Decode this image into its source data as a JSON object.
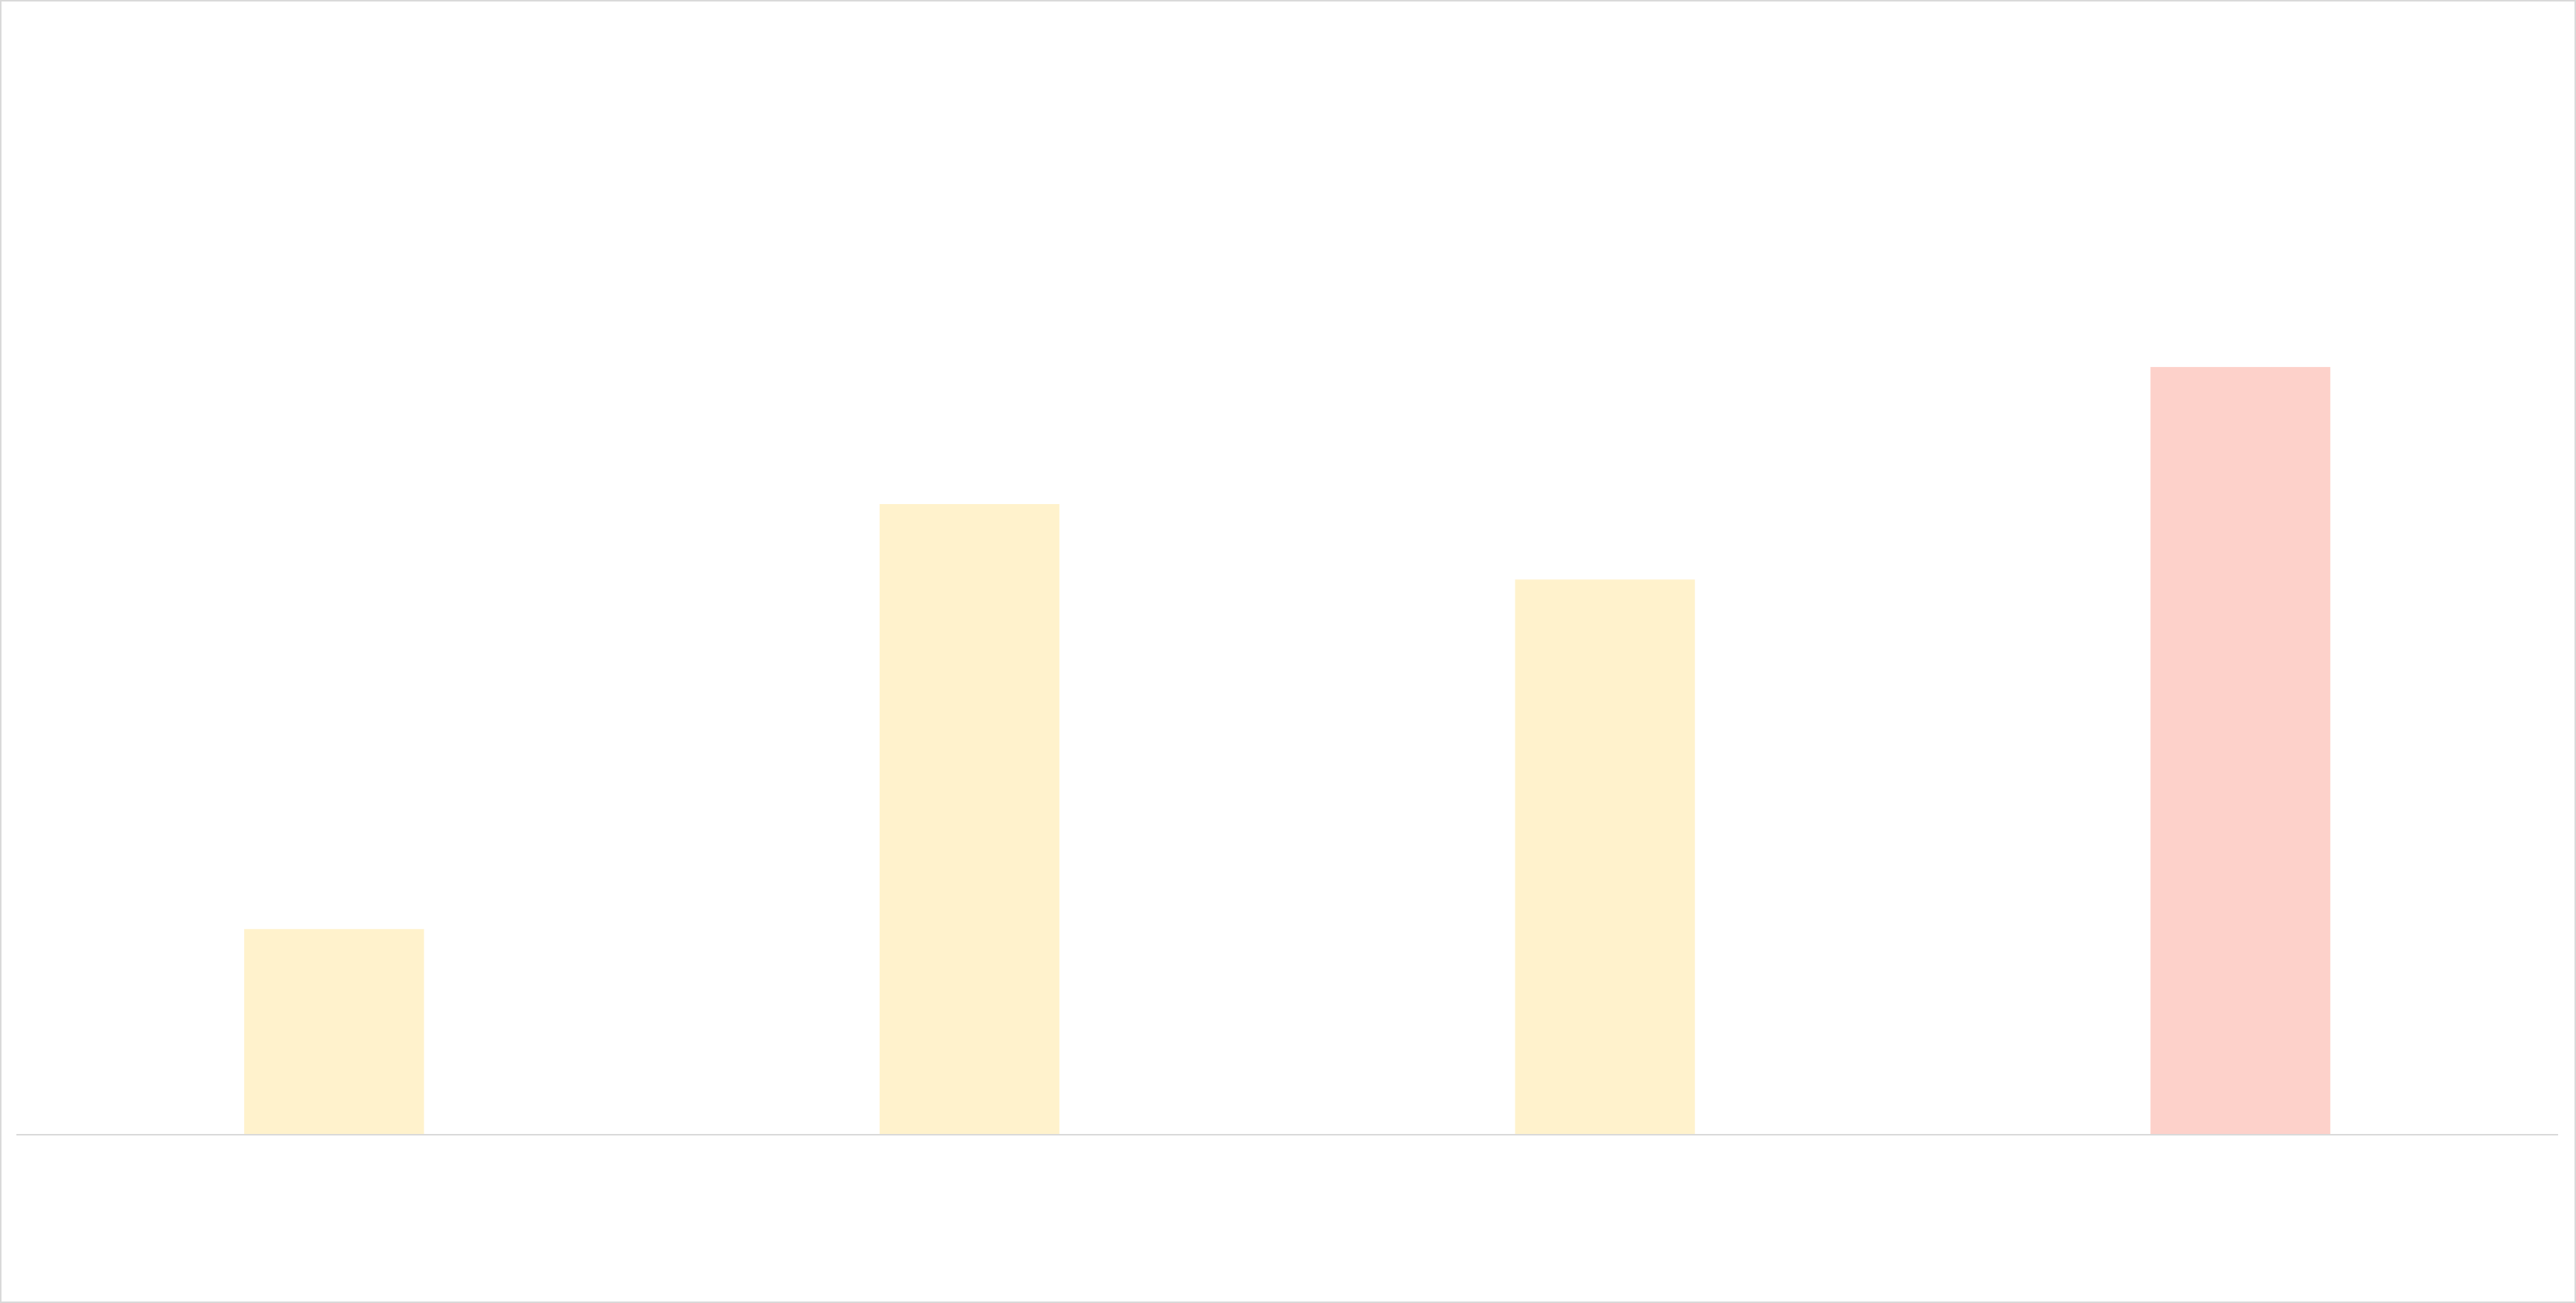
{
  "chart_data": {
    "type": "bar",
    "categories": [
      "",
      "",
      "",
      ""
    ],
    "values": [
      30,
      92,
      81,
      112
    ],
    "ylim": [
      0,
      150
    ],
    "grid": false,
    "legend": "none",
    "colors": [
      "#fff2cc",
      "#fff2cc",
      "#fff2cc",
      "#fdd1ca"
    ],
    "baseline_color": "#d9d9d9"
  }
}
